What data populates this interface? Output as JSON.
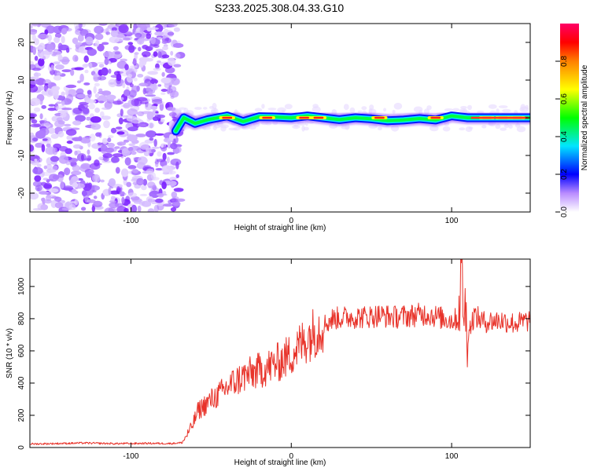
{
  "title": "S233.2025.308.04.33.G10",
  "chart_data": [
    {
      "type": "heatmap",
      "xlabel": "Height of straight line (km)",
      "ylabel": "Frequency (Hz)",
      "xlim": [
        -163,
        149
      ],
      "ylim": [
        -25,
        25
      ],
      "x_ticks": [
        -100,
        0,
        100
      ],
      "x_tick_labels": [
        "-100",
        "0",
        "100"
      ],
      "y_ticks": [
        20,
        10,
        0,
        -10,
        -20
      ],
      "y_tick_labels": [
        "20",
        "10",
        "0",
        "-10",
        "-20"
      ],
      "signal_onset_km": -72,
      "ridge_frequency_hz": 0,
      "ridge_points": [
        {
          "x": -72,
          "y": -3.5
        },
        {
          "x": -67,
          "y": 0
        },
        {
          "x": -60,
          "y": -1.5
        },
        {
          "x": -52,
          "y": -0.5
        },
        {
          "x": -40,
          "y": 0.5
        },
        {
          "x": -30,
          "y": -1
        },
        {
          "x": -20,
          "y": 0.3
        },
        {
          "x": -10,
          "y": 0.2
        },
        {
          "x": 0,
          "y": 0
        },
        {
          "x": 10,
          "y": 0.5
        },
        {
          "x": 20,
          "y": 0
        },
        {
          "x": 30,
          "y": -0.5
        },
        {
          "x": 40,
          "y": 0
        },
        {
          "x": 50,
          "y": -0.3
        },
        {
          "x": 60,
          "y": -0.8
        },
        {
          "x": 70,
          "y": -0.6
        },
        {
          "x": 80,
          "y": -0.2
        },
        {
          "x": 90,
          "y": -0.6
        },
        {
          "x": 100,
          "y": 0.5
        },
        {
          "x": 110,
          "y": 0
        },
        {
          "x": 130,
          "y": 0
        },
        {
          "x": 149,
          "y": 0
        }
      ],
      "colorbar": {
        "label": "Normalized spectral amplitude",
        "range": [
          0,
          1
        ],
        "ticks": [
          0.0,
          0.2,
          0.4,
          0.6,
          0.8
        ],
        "tick_labels": [
          "0.0",
          "0.2",
          "0.4",
          "0.6",
          "0.8"
        ],
        "colormap": [
          "#ffffff",
          "#7b00ff",
          "#0000ff",
          "#00e5ff",
          "#00ff00",
          "#ffff00",
          "#ff8000",
          "#ff0000",
          "#ff0066"
        ]
      }
    },
    {
      "type": "line",
      "xlabel": "Height of straight line (km)",
      "ylabel": "SNR (10 * v/v)",
      "xlim": [
        -163,
        149
      ],
      "ylim": [
        0,
        1170
      ],
      "x_ticks": [
        -100,
        0,
        100
      ],
      "x_tick_labels": [
        "-100",
        "0",
        "100"
      ],
      "y_ticks": [
        0,
        200,
        400,
        600,
        800,
        1000
      ],
      "y_tick_labels": [
        "0",
        "200",
        "400",
        "600",
        "800",
        "1000"
      ],
      "series": [
        {
          "name": "SNR",
          "color": "#e8332a",
          "x": [
            -163,
            -150,
            -130,
            -110,
            -90,
            -75,
            -68,
            -62,
            -58,
            -52,
            -45,
            -38,
            -30,
            -22,
            -14,
            -6,
            0,
            6,
            12,
            20,
            26,
            35,
            45,
            55,
            65,
            75,
            85,
            95,
            100,
            104,
            106,
            108,
            110,
            114,
            120,
            130,
            140,
            149
          ],
          "values": [
            22,
            24,
            28,
            24,
            26,
            25,
            30,
            130,
            230,
            280,
            330,
            390,
            440,
            470,
            500,
            540,
            580,
            640,
            700,
            760,
            800,
            810,
            810,
            820,
            810,
            820,
            830,
            800,
            790,
            800,
            1100,
            850,
            700,
            820,
            780,
            790,
            770,
            790
          ]
        }
      ]
    }
  ]
}
